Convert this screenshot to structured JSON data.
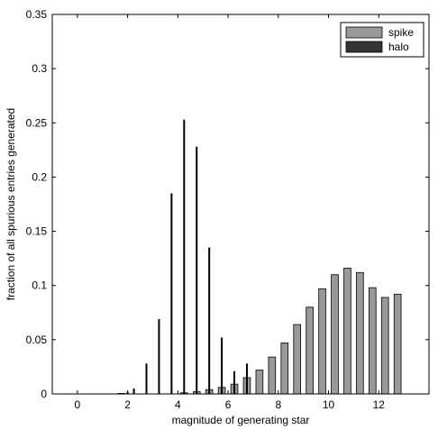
{
  "chart_data": {
    "type": "bar",
    "title": "",
    "xlabel": "magnitude of generating star",
    "ylabel": "fraction of all spurious entries generated",
    "xlim": [
      -1,
      14
    ],
    "ylim": [
      0,
      0.35
    ],
    "xticks": [
      0,
      2,
      4,
      6,
      8,
      10,
      12
    ],
    "yticks": [
      0,
      0.05,
      0.1,
      0.15,
      0.2,
      0.25,
      0.3,
      0.35
    ],
    "grid": false,
    "legend_position": "top-right",
    "bar_width": 0.28,
    "x": [
      0,
      0.25,
      0.5,
      0.75,
      1,
      1.25,
      1.5,
      1.75,
      2,
      2.25,
      2.5,
      2.75,
      3,
      3.25,
      3.5,
      3.75,
      4,
      4.25,
      4.5,
      4.75,
      5,
      5.25,
      5.5,
      5.75,
      6,
      6.25,
      6.5,
      6.75,
      7.25,
      7.75,
      8.25,
      8.75,
      9.25,
      9.75,
      10.25,
      10.75,
      11.25,
      11.75,
      12.25,
      12.75
    ],
    "series": [
      {
        "name": "spike",
        "color": "#999999",
        "values": [
          0,
          0,
          0,
          0,
          0,
          0,
          0,
          0.0005,
          0,
          0,
          0,
          0,
          0,
          0,
          0,
          0,
          0,
          0.001,
          0,
          0.002,
          0,
          0.004,
          0,
          0.006,
          0,
          0.009,
          0,
          0.015,
          0.022,
          0.034,
          0.047,
          0.064,
          0.08,
          0.097,
          0.11,
          0.116,
          0.112,
          0.098,
          0.089,
          0.092
        ]
      },
      {
        "name": "halo",
        "color": "#000000",
        "values": [
          0,
          0,
          0,
          0,
          0,
          0,
          0,
          0,
          0.002,
          0.005,
          0,
          0.028,
          0,
          0.069,
          0,
          0.185,
          0,
          0.253,
          0,
          0.228,
          0,
          0.135,
          0,
          0.052,
          0,
          0.021,
          0,
          0.028,
          0,
          0,
          0,
          0,
          0,
          0,
          0,
          0,
          0,
          0,
          0,
          0
        ]
      }
    ]
  }
}
